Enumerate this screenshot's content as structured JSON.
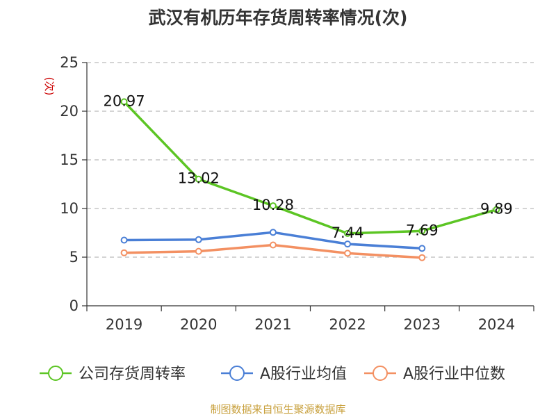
{
  "chart_data": {
    "type": "line",
    "title": "武汉有机历年存货周转率情况(次)",
    "ylabel": "(次)",
    "categories": [
      "2019",
      "2020",
      "2021",
      "2022",
      "2023",
      "2024"
    ],
    "y_ticks": [
      "0",
      "5",
      "10",
      "15",
      "20",
      "25"
    ],
    "ylim": [
      0,
      25
    ],
    "grid": true,
    "legend_position": "bottom",
    "series": [
      {
        "name": "公司存货周转率",
        "color": "#5cc524",
        "values": [
          20.97,
          13.02,
          10.28,
          7.44,
          7.69,
          9.89
        ],
        "labels": [
          "20.97",
          "13.02",
          "10.28",
          "7.44",
          "7.69",
          "9.89"
        ]
      },
      {
        "name": "A股行业均值",
        "color": "#4a7fd6",
        "values": [
          6.75,
          6.8,
          7.55,
          6.35,
          5.9,
          null
        ]
      },
      {
        "name": "A股行业中位数",
        "color": "#f39062",
        "values": [
          5.45,
          5.6,
          6.25,
          5.4,
          4.95,
          null
        ]
      }
    ]
  },
  "source": "制图数据来自恒生聚源数据库"
}
